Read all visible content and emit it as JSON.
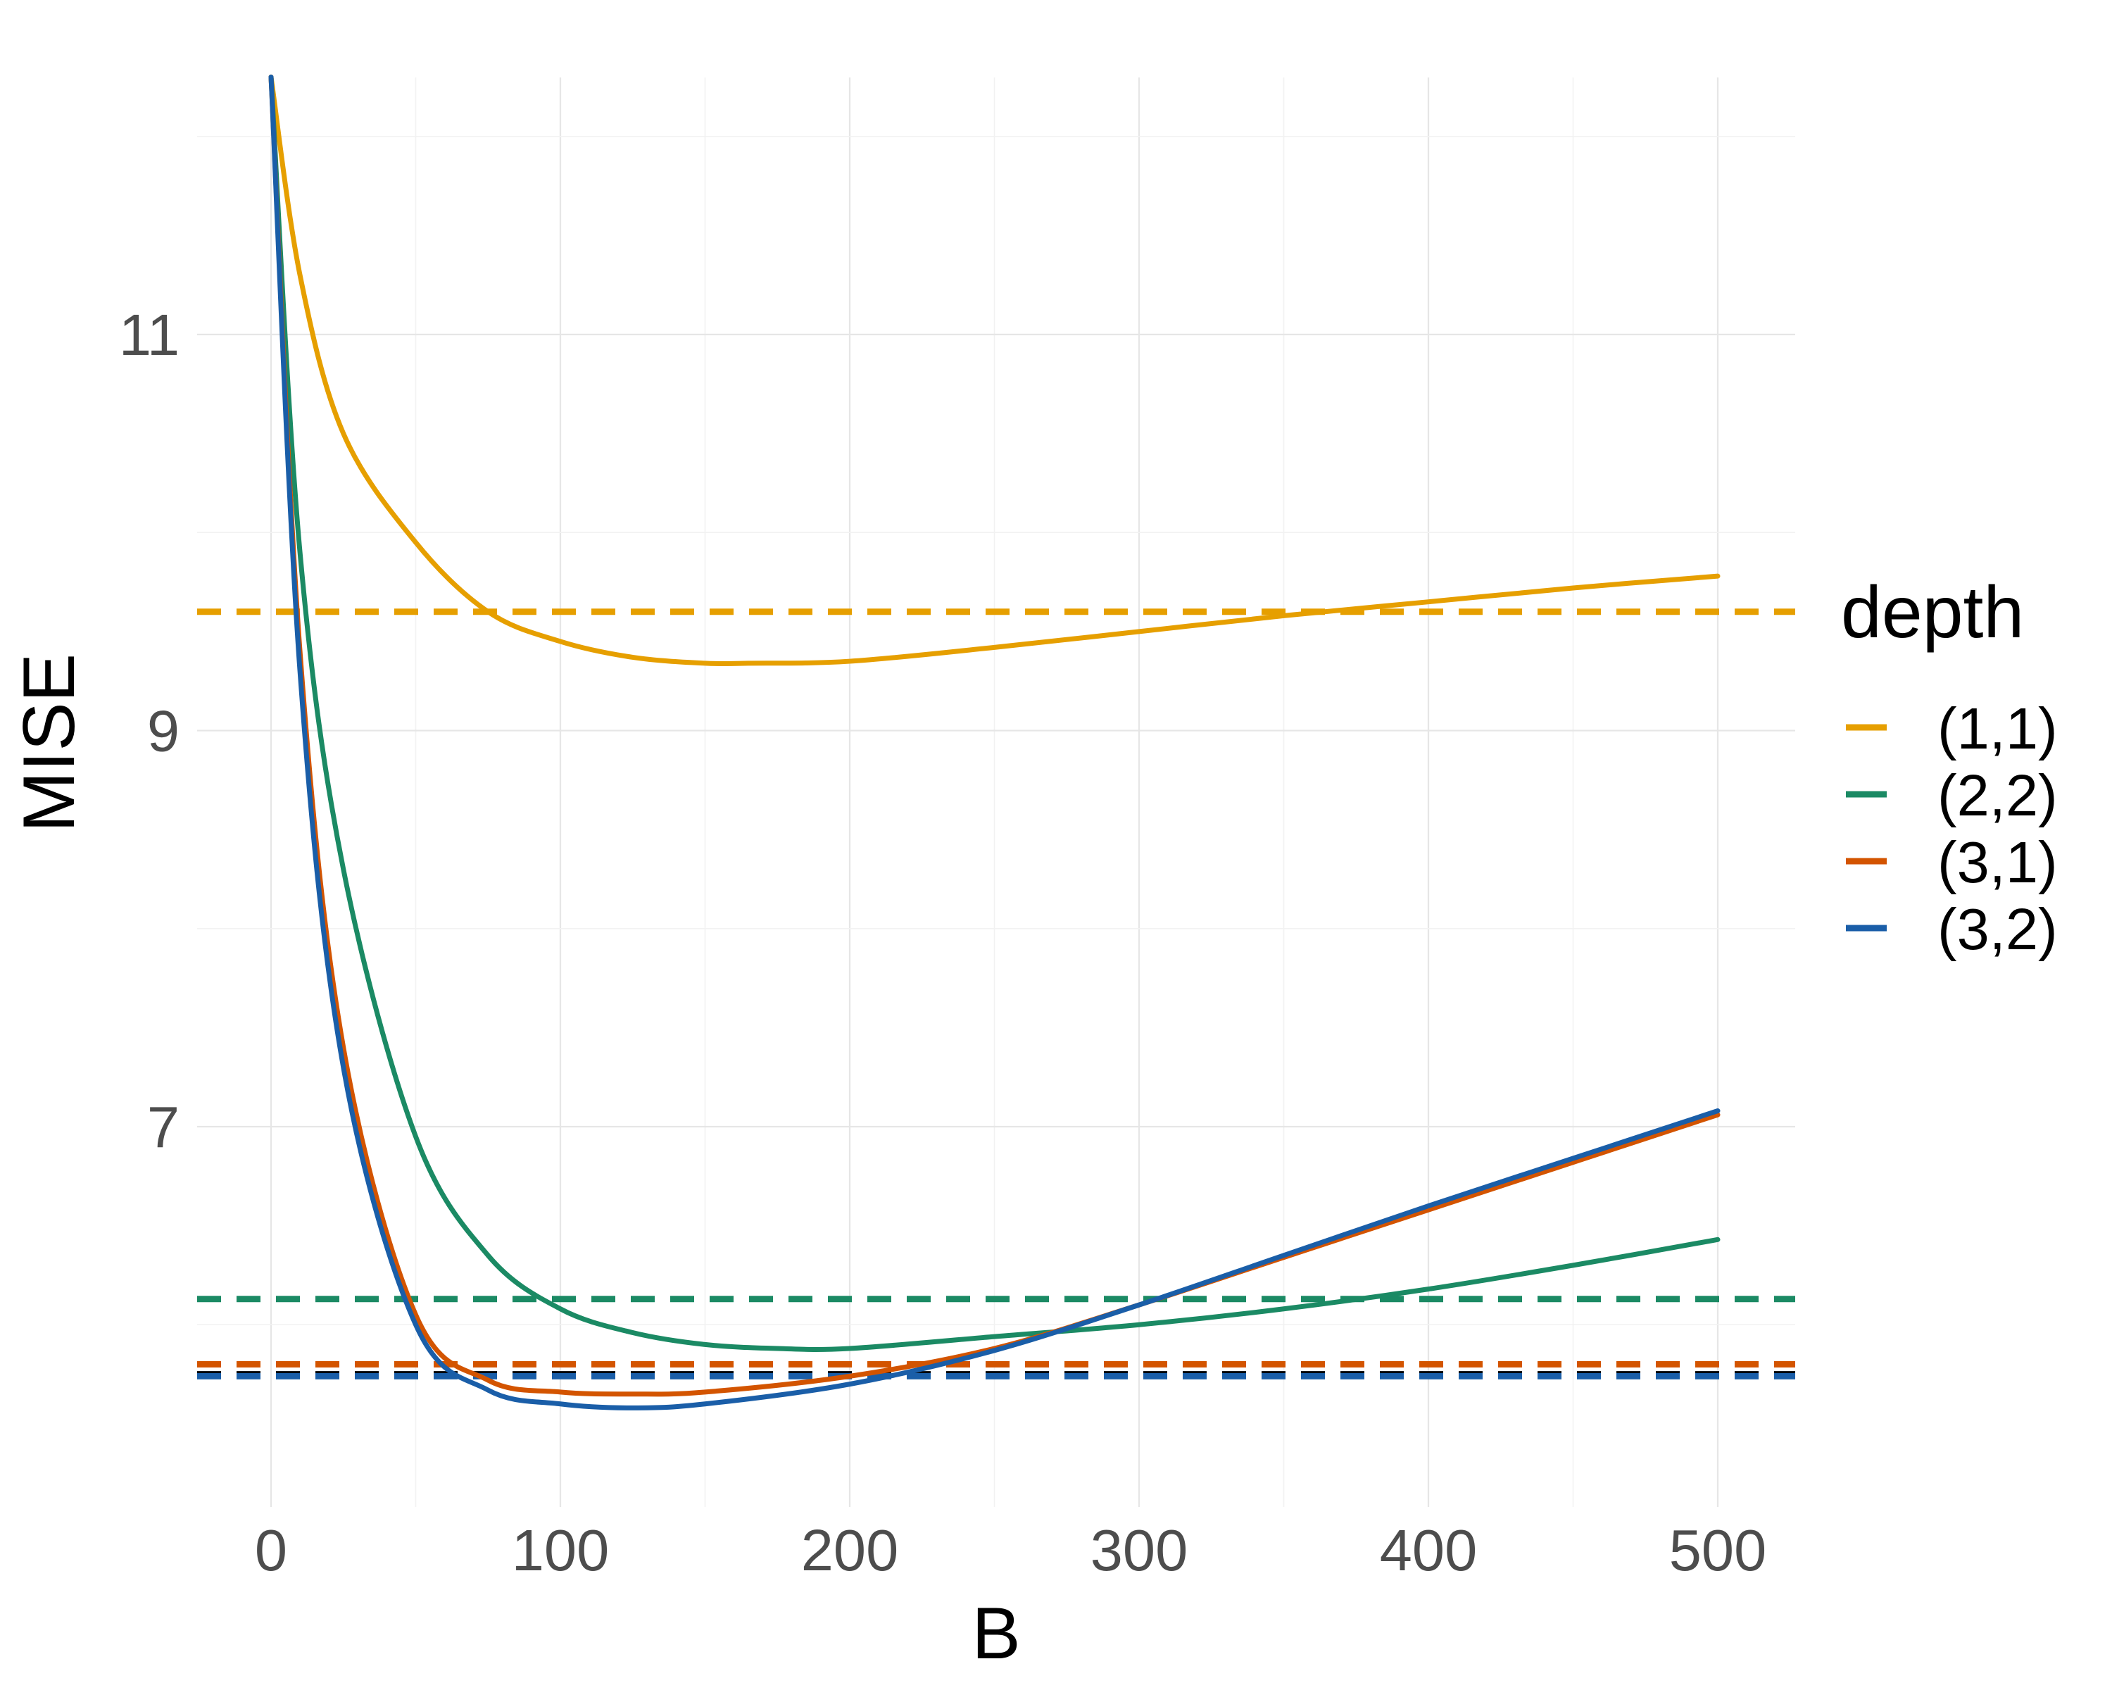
{
  "chart_data": {
    "type": "line",
    "title": "",
    "xlabel": "B",
    "ylabel": "MISE",
    "xlim": [
      -25,
      525
    ],
    "ylim": [
      5.2,
      12.4
    ],
    "x_ticks": [
      0,
      100,
      200,
      300,
      400,
      500
    ],
    "y_ticks": [
      7,
      9,
      11
    ],
    "grid": true,
    "legend": {
      "title": "depth",
      "placement": "right"
    },
    "series": [
      {
        "name": "(1,1)",
        "color": "#E69F00",
        "x": [
          0,
          10,
          25,
          50,
          75,
          100,
          125,
          150,
          165,
          200,
          250,
          300,
          350,
          400,
          450,
          500
        ],
        "y": [
          12.3,
          11.3,
          10.5,
          9.95,
          9.6,
          9.45,
          9.37,
          9.34,
          9.34,
          9.35,
          9.42,
          9.5,
          9.58,
          9.65,
          9.72,
          9.78
        ]
      },
      {
        "name": "(2,2)",
        "color": "#1B8A64",
        "x": [
          0,
          10,
          25,
          50,
          75,
          100,
          125,
          150,
          175,
          200,
          250,
          300,
          350,
          400,
          450,
          500
        ],
        "y": [
          12.3,
          9.9,
          8.3,
          6.95,
          6.35,
          6.08,
          5.96,
          5.9,
          5.88,
          5.88,
          5.94,
          6.0,
          6.08,
          6.18,
          6.3,
          6.43
        ]
      },
      {
        "name": "(3,1)",
        "color": "#D35400",
        "x": [
          0,
          10,
          25,
          50,
          75,
          100,
          125,
          150,
          200,
          250,
          300,
          350,
          400,
          450,
          500
        ],
        "y": [
          12.3,
          9.4,
          7.4,
          6.05,
          5.72,
          5.66,
          5.65,
          5.66,
          5.74,
          5.88,
          6.1,
          6.34,
          6.58,
          6.82,
          7.06
        ]
      },
      {
        "name": "(3,2)",
        "color": "#1A5EA8",
        "x": [
          0,
          10,
          25,
          50,
          75,
          100,
          125,
          150,
          200,
          250,
          300,
          350,
          400,
          450,
          500
        ],
        "y": [
          12.3,
          9.3,
          7.3,
          6.0,
          5.67,
          5.6,
          5.58,
          5.6,
          5.7,
          5.87,
          6.1,
          6.35,
          6.6,
          6.84,
          7.08
        ]
      }
    ],
    "reference_lines": [
      {
        "series": "(1,1)",
        "y": 9.6,
        "color": "#E69F00",
        "style": "dashed"
      },
      {
        "series": "(2,2)",
        "y": 6.13,
        "color": "#1B8A64",
        "style": "dashed"
      },
      {
        "series": "(3,1)",
        "y": 5.8,
        "color": "#D35400",
        "style": "dashed"
      },
      {
        "series": "(3,2)",
        "y": 5.75,
        "color": "#000000",
        "style": "dashed"
      },
      {
        "series": "(3,2)",
        "y": 5.74,
        "color": "#1A5EA8",
        "style": "dashed"
      }
    ]
  }
}
